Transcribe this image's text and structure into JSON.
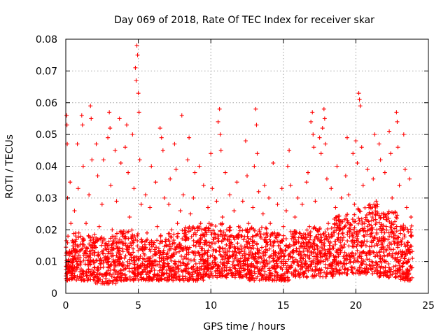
{
  "chart_data": {
    "type": "scatter",
    "title": "Day 069 of 2018, Rate Of TEC Index for receiver skar",
    "xlabel": "GPS time / hours",
    "ylabel": "ROTI / TECUs",
    "xlim": [
      0,
      25
    ],
    "ylim": [
      0,
      0.08
    ],
    "x_ticks": [
      0,
      5,
      10,
      15,
      20,
      25
    ],
    "y_ticks": [
      0,
      0.01,
      0.02,
      0.03,
      0.04,
      0.05,
      0.06,
      0.07,
      0.08
    ],
    "x_tick_labels": [
      "0",
      "5",
      "10",
      "15",
      "20",
      "25"
    ],
    "y_tick_labels": [
      "0",
      "0.01",
      "0.02",
      "0.03",
      "0.04",
      "0.05",
      "0.06",
      "0.07",
      "0.08"
    ],
    "grid": true,
    "marker": "+",
    "color": "#ff0000",
    "series": [
      {
        "name": "ROTI",
        "points": [
          [
            0.0,
            0.012
          ],
          [
            0.05,
            0.056
          ],
          [
            0.08,
            0.053
          ],
          [
            0.1,
            0.047
          ],
          [
            0.12,
            0.03
          ],
          [
            0.15,
            0.018
          ],
          [
            0.2,
            0.009
          ],
          [
            0.25,
            0.012
          ],
          [
            0.3,
            0.035
          ],
          [
            0.35,
            0.022
          ],
          [
            0.4,
            0.008
          ],
          [
            0.5,
            0.014
          ],
          [
            0.6,
            0.026
          ],
          [
            0.7,
            0.011
          ],
          [
            0.8,
            0.047
          ],
          [
            0.85,
            0.033
          ],
          [
            0.9,
            0.019
          ],
          [
            1.0,
            0.01
          ],
          [
            1.1,
            0.056
          ],
          [
            1.15,
            0.053
          ],
          [
            1.2,
            0.04
          ],
          [
            1.3,
            0.013
          ],
          [
            1.4,
            0.022
          ],
          [
            1.5,
            0.009
          ],
          [
            1.6,
            0.031
          ],
          [
            1.7,
            0.059
          ],
          [
            1.75,
            0.055
          ],
          [
            1.8,
            0.042
          ],
          [
            1.9,
            0.016
          ],
          [
            2.0,
            0.012
          ],
          [
            2.1,
            0.047
          ],
          [
            2.2,
            0.037
          ],
          [
            2.3,
            0.021
          ],
          [
            2.4,
            0.008
          ],
          [
            2.5,
            0.028
          ],
          [
            2.6,
            0.042
          ],
          [
            2.7,
            0.015
          ],
          [
            2.8,
            0.011
          ],
          [
            2.9,
            0.049
          ],
          [
            3.0,
            0.057
          ],
          [
            3.05,
            0.052
          ],
          [
            3.1,
            0.034
          ],
          [
            3.2,
            0.02
          ],
          [
            3.3,
            0.01
          ],
          [
            3.4,
            0.045
          ],
          [
            3.5,
            0.029
          ],
          [
            3.6,
            0.013
          ],
          [
            3.7,
            0.055
          ],
          [
            3.8,
            0.041
          ],
          [
            3.9,
            0.018
          ],
          [
            4.0,
            0.009
          ],
          [
            4.1,
            0.046
          ],
          [
            4.2,
            0.053
          ],
          [
            4.3,
            0.038
          ],
          [
            4.4,
            0.024
          ],
          [
            4.5,
            0.012
          ],
          [
            4.6,
            0.05
          ],
          [
            4.7,
            0.033
          ],
          [
            4.8,
            0.071
          ],
          [
            4.85,
            0.067
          ],
          [
            4.9,
            0.078
          ],
          [
            4.95,
            0.075
          ],
          [
            5.0,
            0.063
          ],
          [
            5.05,
            0.057
          ],
          [
            5.1,
            0.042
          ],
          [
            5.2,
            0.028
          ],
          [
            5.3,
            0.014
          ],
          [
            5.4,
            0.009
          ],
          [
            5.5,
            0.031
          ],
          [
            5.6,
            0.019
          ],
          [
            5.7,
            0.011
          ],
          [
            5.8,
            0.027
          ],
          [
            5.9,
            0.04
          ],
          [
            6.0,
            0.016
          ],
          [
            6.1,
            0.01
          ],
          [
            6.2,
            0.035
          ],
          [
            6.3,
            0.021
          ],
          [
            6.4,
            0.013
          ],
          [
            6.5,
            0.052
          ],
          [
            6.6,
            0.049
          ],
          [
            6.7,
            0.045
          ],
          [
            6.8,
            0.03
          ],
          [
            6.9,
            0.017
          ],
          [
            7.0,
            0.009
          ],
          [
            7.1,
            0.028
          ],
          [
            7.2,
            0.036
          ],
          [
            7.3,
            0.02
          ],
          [
            7.4,
            0.012
          ],
          [
            7.5,
            0.047
          ],
          [
            7.6,
            0.039
          ],
          [
            7.7,
            0.022
          ],
          [
            7.8,
            0.01
          ],
          [
            7.9,
            0.026
          ],
          [
            8.0,
            0.056
          ],
          [
            8.1,
            0.031
          ],
          [
            8.2,
            0.018
          ],
          [
            8.3,
            0.011
          ],
          [
            8.4,
            0.042
          ],
          [
            8.5,
            0.049
          ],
          [
            8.6,
            0.025
          ],
          [
            8.7,
            0.013
          ],
          [
            8.8,
            0.03
          ],
          [
            8.9,
            0.038
          ],
          [
            9.0,
            0.016
          ],
          [
            9.1,
            0.008
          ],
          [
            9.2,
            0.04
          ],
          [
            9.3,
            0.022
          ],
          [
            9.4,
            0.012
          ],
          [
            9.5,
            0.034
          ],
          [
            9.6,
            0.019
          ],
          [
            9.7,
            0.01
          ],
          [
            9.8,
            0.027
          ],
          [
            9.9,
            0.015
          ],
          [
            10.0,
            0.044
          ],
          [
            10.1,
            0.033
          ],
          [
            10.2,
            0.017
          ],
          [
            10.3,
            0.009
          ],
          [
            10.4,
            0.029
          ],
          [
            10.5,
            0.054
          ],
          [
            10.6,
            0.058
          ],
          [
            10.65,
            0.05
          ],
          [
            10.7,
            0.045
          ],
          [
            10.8,
            0.024
          ],
          [
            10.9,
            0.013
          ],
          [
            11.0,
            0.038
          ],
          [
            11.1,
            0.02
          ],
          [
            11.2,
            0.011
          ],
          [
            11.3,
            0.031
          ],
          [
            11.4,
            0.016
          ],
          [
            11.5,
            0.009
          ],
          [
            11.6,
            0.026
          ],
          [
            11.7,
            0.014
          ],
          [
            11.8,
            0.035
          ],
          [
            11.9,
            0.021
          ],
          [
            12.0,
            0.01
          ],
          [
            12.1,
            0.018
          ],
          [
            12.2,
            0.029
          ],
          [
            12.3,
            0.012
          ],
          [
            12.4,
            0.048
          ],
          [
            12.5,
            0.037
          ],
          [
            12.6,
            0.022
          ],
          [
            12.7,
            0.013
          ],
          [
            12.8,
            0.009
          ],
          [
            12.9,
            0.027
          ],
          [
            13.0,
            0.04
          ],
          [
            13.1,
            0.058
          ],
          [
            13.15,
            0.053
          ],
          [
            13.2,
            0.044
          ],
          [
            13.3,
            0.032
          ],
          [
            13.4,
            0.018
          ],
          [
            13.5,
            0.011
          ],
          [
            13.6,
            0.025
          ],
          [
            13.7,
            0.034
          ],
          [
            13.8,
            0.016
          ],
          [
            13.9,
            0.009
          ],
          [
            14.0,
            0.03
          ],
          [
            14.1,
            0.022
          ],
          [
            14.2,
            0.012
          ],
          [
            14.3,
            0.041
          ],
          [
            14.4,
            0.019
          ],
          [
            14.5,
            0.01
          ],
          [
            14.6,
            0.028
          ],
          [
            14.7,
            0.015
          ],
          [
            14.8,
            0.008
          ],
          [
            14.9,
            0.033
          ],
          [
            15.0,
            0.021
          ],
          [
            15.1,
            0.012
          ],
          [
            15.2,
            0.026
          ],
          [
            15.3,
            0.04
          ],
          [
            15.4,
            0.045
          ],
          [
            15.5,
            0.034
          ],
          [
            15.6,
            0.018
          ],
          [
            15.7,
            0.01
          ],
          [
            15.8,
            0.024
          ],
          [
            15.9,
            0.014
          ],
          [
            16.0,
            0.03
          ],
          [
            16.1,
            0.019
          ],
          [
            16.2,
            0.011
          ],
          [
            16.3,
            0.028
          ],
          [
            16.4,
            0.016
          ],
          [
            16.5,
            0.009
          ],
          [
            16.6,
            0.035
          ],
          [
            16.7,
            0.038
          ],
          [
            16.8,
            0.021
          ],
          [
            16.9,
            0.054
          ],
          [
            17.0,
            0.057
          ],
          [
            17.05,
            0.05
          ],
          [
            17.1,
            0.046
          ],
          [
            17.2,
            0.029
          ],
          [
            17.3,
            0.015
          ],
          [
            17.4,
            0.01
          ],
          [
            17.5,
            0.049
          ],
          [
            17.6,
            0.044
          ],
          [
            17.7,
            0.052
          ],
          [
            17.8,
            0.058
          ],
          [
            17.85,
            0.055
          ],
          [
            17.9,
            0.047
          ],
          [
            18.0,
            0.036
          ],
          [
            18.1,
            0.022
          ],
          [
            18.2,
            0.013
          ],
          [
            18.3,
            0.033
          ],
          [
            18.4,
            0.018
          ],
          [
            18.5,
            0.01
          ],
          [
            18.6,
            0.027
          ],
          [
            18.7,
            0.04
          ],
          [
            18.8,
            0.023
          ],
          [
            18.9,
            0.014
          ],
          [
            19.0,
            0.03
          ],
          [
            19.1,
            0.019
          ],
          [
            19.2,
            0.011
          ],
          [
            19.3,
            0.037
          ],
          [
            19.4,
            0.049
          ],
          [
            19.5,
            0.031
          ],
          [
            19.6,
            0.02
          ],
          [
            19.7,
            0.012
          ],
          [
            19.8,
            0.044
          ],
          [
            19.9,
            0.028
          ],
          [
            20.0,
            0.048
          ],
          [
            20.1,
            0.041
          ],
          [
            20.2,
            0.063
          ],
          [
            20.25,
            0.061
          ],
          [
            20.3,
            0.059
          ],
          [
            20.4,
            0.046
          ],
          [
            20.5,
            0.034
          ],
          [
            20.6,
            0.022
          ],
          [
            20.7,
            0.015
          ],
          [
            20.8,
            0.039
          ],
          [
            20.9,
            0.027
          ],
          [
            21.0,
            0.018
          ],
          [
            21.1,
            0.01
          ],
          [
            21.2,
            0.036
          ],
          [
            21.3,
            0.05
          ],
          [
            21.4,
            0.029
          ],
          [
            21.5,
            0.017
          ],
          [
            21.6,
            0.047
          ],
          [
            21.7,
            0.042
          ],
          [
            21.8,
            0.025
          ],
          [
            21.9,
            0.013
          ],
          [
            22.0,
            0.038
          ],
          [
            22.1,
            0.024
          ],
          [
            22.2,
            0.015
          ],
          [
            22.3,
            0.051
          ],
          [
            22.4,
            0.044
          ],
          [
            22.5,
            0.03
          ],
          [
            22.6,
            0.019
          ],
          [
            22.7,
            0.011
          ],
          [
            22.8,
            0.057
          ],
          [
            22.85,
            0.054
          ],
          [
            22.9,
            0.046
          ],
          [
            23.0,
            0.034
          ],
          [
            23.1,
            0.021
          ],
          [
            23.2,
            0.013
          ],
          [
            23.3,
            0.05
          ],
          [
            23.4,
            0.039
          ],
          [
            23.5,
            0.027
          ],
          [
            23.6,
            0.016
          ],
          [
            23.7,
            0.036
          ],
          [
            23.8,
            0.024
          ],
          [
            23.9,
            0.011
          ]
        ]
      }
    ],
    "bands": [
      {
        "x0": 0.0,
        "x1": 0.5,
        "ylo": 0.004,
        "yhi": 0.017,
        "n": 70
      },
      {
        "x0": 0.5,
        "x1": 2.0,
        "ylo": 0.004,
        "yhi": 0.019,
        "n": 160
      },
      {
        "x0": 2.0,
        "x1": 3.5,
        "ylo": 0.003,
        "yhi": 0.018,
        "n": 160
      },
      {
        "x0": 3.5,
        "x1": 5.0,
        "ylo": 0.004,
        "yhi": 0.02,
        "n": 170
      },
      {
        "x0": 5.0,
        "x1": 6.5,
        "ylo": 0.004,
        "yhi": 0.017,
        "n": 150
      },
      {
        "x0": 6.5,
        "x1": 8.0,
        "ylo": 0.004,
        "yhi": 0.019,
        "n": 160
      },
      {
        "x0": 8.0,
        "x1": 9.5,
        "ylo": 0.004,
        "yhi": 0.021,
        "n": 160
      },
      {
        "x0": 9.5,
        "x1": 11.0,
        "ylo": 0.005,
        "yhi": 0.022,
        "n": 170
      },
      {
        "x0": 11.0,
        "x1": 12.5,
        "ylo": 0.005,
        "yhi": 0.021,
        "n": 160
      },
      {
        "x0": 12.5,
        "x1": 14.0,
        "ylo": 0.004,
        "yhi": 0.021,
        "n": 170
      },
      {
        "x0": 14.0,
        "x1": 15.5,
        "ylo": 0.004,
        "yhi": 0.019,
        "n": 160
      },
      {
        "x0": 15.5,
        "x1": 17.0,
        "ylo": 0.005,
        "yhi": 0.02,
        "n": 160
      },
      {
        "x0": 17.0,
        "x1": 18.5,
        "ylo": 0.005,
        "yhi": 0.021,
        "n": 160
      },
      {
        "x0": 18.5,
        "x1": 20.0,
        "ylo": 0.006,
        "yhi": 0.025,
        "n": 170
      },
      {
        "x0": 20.0,
        "x1": 21.5,
        "ylo": 0.006,
        "yhi": 0.028,
        "n": 180
      },
      {
        "x0": 21.5,
        "x1": 23.0,
        "ylo": 0.005,
        "yhi": 0.026,
        "n": 180
      },
      {
        "x0": 23.0,
        "x1": 23.9,
        "ylo": 0.004,
        "yhi": 0.022,
        "n": 110
      }
    ]
  }
}
